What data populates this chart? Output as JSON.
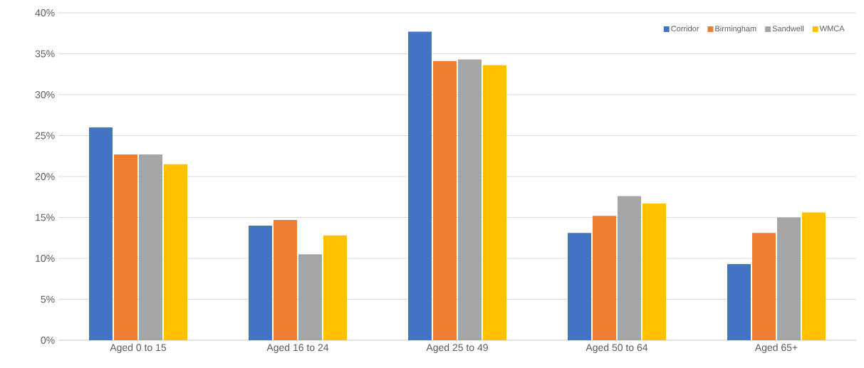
{
  "chart_data": {
    "type": "bar",
    "categories": [
      "Aged 0 to 15",
      "Aged 16 to 24",
      "Aged 25 to 49",
      "Aged 50 to 64",
      "Aged 65+"
    ],
    "series": [
      {
        "name": "Corridor",
        "color": "#4472c4",
        "values": [
          26.0,
          14.0,
          37.7,
          13.1,
          9.3
        ]
      },
      {
        "name": "Birmingham",
        "color": "#ed7d31",
        "values": [
          22.7,
          14.7,
          34.1,
          15.2,
          13.1
        ]
      },
      {
        "name": "Sandwell",
        "color": "#a5a5a5",
        "values": [
          22.7,
          10.5,
          34.3,
          17.6,
          15.0
        ]
      },
      {
        "name": "WMCA",
        "color": "#ffc000",
        "values": [
          21.5,
          12.8,
          33.6,
          16.7,
          15.6
        ]
      }
    ],
    "ylim": [
      0,
      40
    ],
    "yticks": [
      {
        "value": 0,
        "label": "0%"
      },
      {
        "value": 5,
        "label": "5%"
      },
      {
        "value": 10,
        "label": "10%"
      },
      {
        "value": 15,
        "label": "15%"
      },
      {
        "value": 20,
        "label": "20%"
      },
      {
        "value": 25,
        "label": "25%"
      },
      {
        "value": 30,
        "label": "30%"
      },
      {
        "value": 35,
        "label": "35%"
      },
      {
        "value": 40,
        "label": "40%"
      }
    ],
    "grid": "y",
    "legend": "top right"
  }
}
